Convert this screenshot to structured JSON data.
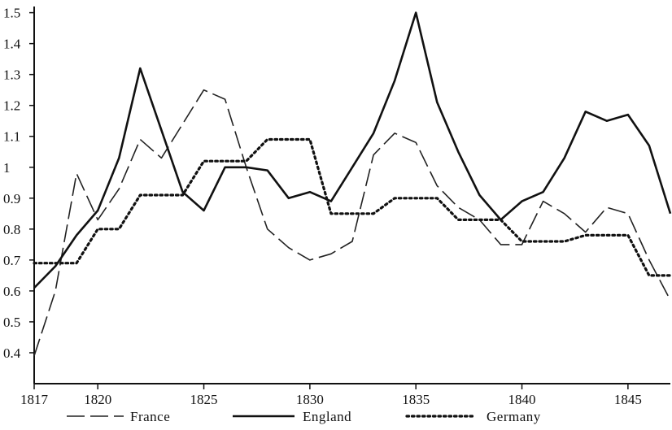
{
  "chart_data": {
    "type": "line",
    "title": "",
    "xlabel": "",
    "ylabel": "",
    "xlim": [
      1817,
      1847
    ],
    "ylim": [
      0.3,
      1.52
    ],
    "grid": false,
    "legend_position": "bottom",
    "x_ticks": [
      1817,
      1820,
      1825,
      1830,
      1835,
      1840,
      1845
    ],
    "y_ticks": [
      0.4,
      0.5,
      0.6,
      0.7,
      0.8,
      0.9,
      1,
      1.1,
      1.2,
      1.3,
      1.4,
      1.5
    ],
    "x_tick_labels": [
      "1817",
      "1820",
      "1825",
      "1830",
      "1835",
      "1840",
      "1845"
    ],
    "y_tick_labels": [
      "0.4",
      "0.5",
      "0.6",
      "0.7",
      "0.8",
      "0.9",
      "1",
      "1.1",
      "1.2",
      "1.3",
      "1.4",
      "1.5"
    ],
    "series": [
      {
        "name": "France",
        "style": "dashed",
        "color": "#222222",
        "x": [
          1817,
          1818,
          1819,
          1820,
          1821,
          1822,
          1823,
          1824,
          1825,
          1826,
          1827,
          1828,
          1829,
          1830,
          1831,
          1832,
          1833,
          1834,
          1835,
          1836,
          1837,
          1838,
          1839,
          1840,
          1841,
          1842,
          1843,
          1844,
          1845,
          1846,
          1847
        ],
        "values": [
          0.39,
          0.6,
          0.98,
          0.83,
          0.93,
          1.09,
          1.03,
          1.14,
          1.25,
          1.22,
          1.0,
          0.8,
          0.74,
          0.7,
          0.72,
          0.76,
          1.04,
          1.11,
          1.08,
          0.94,
          0.87,
          0.83,
          0.75,
          0.75,
          0.89,
          0.85,
          0.79,
          0.87,
          0.85,
          0.7,
          0.57
        ]
      },
      {
        "name": "England",
        "style": "solid",
        "color": "#111111",
        "x": [
          1817,
          1818,
          1819,
          1820,
          1821,
          1822,
          1823,
          1824,
          1825,
          1826,
          1827,
          1828,
          1829,
          1830,
          1831,
          1832,
          1833,
          1834,
          1835,
          1836,
          1837,
          1838,
          1839,
          1840,
          1841,
          1842,
          1843,
          1844,
          1845,
          1846,
          1847
        ],
        "values": [
          0.61,
          0.68,
          0.78,
          0.86,
          1.03,
          1.32,
          1.12,
          0.92,
          0.86,
          1.0,
          1.0,
          0.99,
          0.9,
          0.92,
          0.89,
          1.0,
          1.11,
          1.28,
          1.5,
          1.21,
          1.05,
          0.91,
          0.83,
          0.89,
          0.92,
          1.03,
          1.18,
          1.15,
          1.17,
          1.07,
          0.85
        ]
      },
      {
        "name": "Germany",
        "style": "dotted",
        "color": "#111111",
        "x": [
          1817,
          1818,
          1819,
          1820,
          1821,
          1822,
          1823,
          1824,
          1825,
          1826,
          1827,
          1828,
          1829,
          1830,
          1831,
          1832,
          1833,
          1834,
          1835,
          1836,
          1837,
          1838,
          1839,
          1840,
          1841,
          1842,
          1843,
          1844,
          1845,
          1846,
          1847
        ],
        "values": [
          0.69,
          0.69,
          0.69,
          0.8,
          0.8,
          0.91,
          0.91,
          0.91,
          1.02,
          1.02,
          1.02,
          1.09,
          1.09,
          1.09,
          0.85,
          0.85,
          0.85,
          0.9,
          0.9,
          0.9,
          0.83,
          0.83,
          0.83,
          0.76,
          0.76,
          0.76,
          0.78,
          0.78,
          0.78,
          0.65,
          0.65
        ]
      }
    ]
  }
}
